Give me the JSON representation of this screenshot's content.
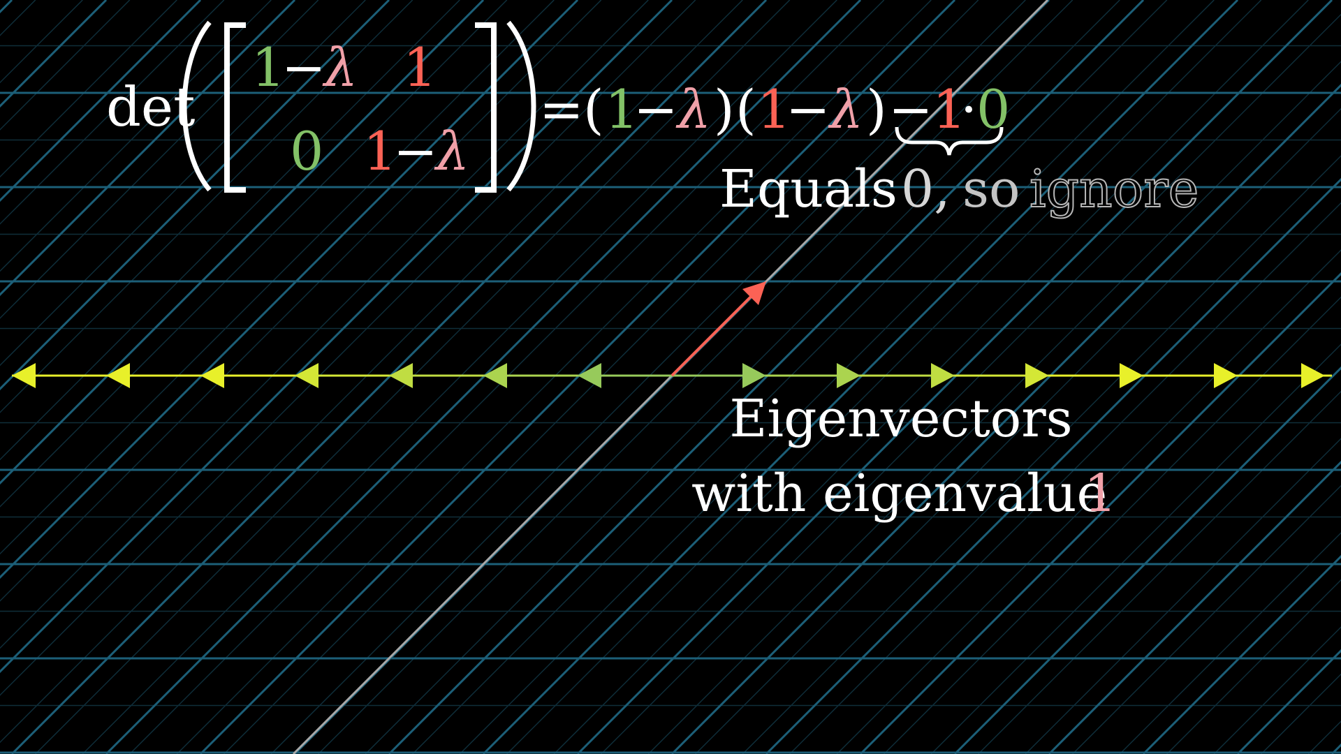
{
  "colors": {
    "background": "#000000",
    "grid_major": "#1c5f78",
    "grid_minor": "#0f2e3a",
    "white": "#ffffff",
    "green": "#83c167",
    "red": "#fc6255",
    "pink": "#f0a0a8",
    "gray_line": "#a8a8a8",
    "yellow": "#e8f02a",
    "vector_red": "#fc6255"
  },
  "equation": {
    "det": "det",
    "m11_num": "1",
    "m11_minus": "−",
    "m11_lambda": "λ",
    "m12": "1",
    "m21": "0",
    "m22_num": "1",
    "m22_minus": "−",
    "m22_lambda": "λ",
    "equals": "=",
    "open1": "(",
    "t1_num": "1",
    "t1_minus": "−",
    "t1_lambda": "λ",
    "close1": ")",
    "open2": "(",
    "t2_num": "1",
    "t2_minus": "−",
    "t2_lambda": "λ",
    "close2": ")",
    "minus": "−",
    "term_one": "1",
    "dot": "·",
    "term_zero": "0"
  },
  "annotation": {
    "equals": "Equals",
    "zero": "0,",
    "so": "so",
    "ignore": "ignore"
  },
  "label": {
    "line1": "Eigenvectors",
    "line2_prefix": "with eigenvalue",
    "line2_value": "1"
  },
  "icons": {
    "vector": "arrow-vector-icon",
    "brace": "underbrace-icon",
    "eigen_arrow": "arrowhead-icon"
  }
}
